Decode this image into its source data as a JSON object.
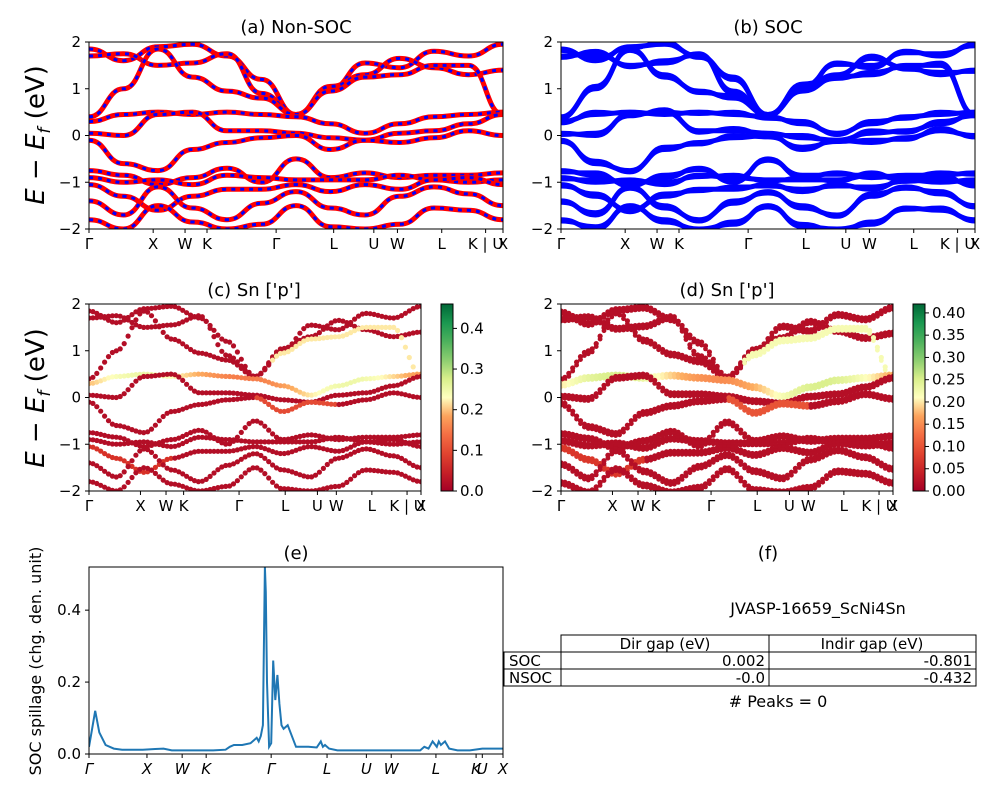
{
  "chart_data": [
    {
      "type": "line",
      "panel": "a",
      "title": "(a) Non-SOC",
      "ylabel_parts": [
        "E",
        " − ",
        "E",
        "f",
        " (eV)"
      ],
      "ylim": [
        -2,
        2
      ],
      "yticks": [
        "2",
        "1",
        "0",
        "−1",
        "−2"
      ],
      "xticks": [
        "Γ",
        "X",
        "W",
        "K",
        "Γ",
        "L",
        "U",
        "W",
        "L",
        "K | U",
        "X"
      ],
      "series": [
        {
          "values": [
            1.85,
            1.6,
            1.9,
            1.95,
            1.7,
            1.2,
            0.45,
            1.0,
            1.55,
            1.45,
            1.8,
            1.7,
            1.95
          ]
        },
        {
          "values": [
            1.7,
            1.75,
            1.5,
            1.55,
            1.75,
            0.9,
            0.45,
            1.05,
            1.3,
            1.65,
            1.45,
            1.3,
            1.4
          ]
        },
        {
          "values": [
            0.4,
            1.0,
            1.85,
            1.25,
            0.95,
            0.8,
            0.45,
            0.95,
            1.25,
            1.3,
            1.5,
            1.5,
            0.45
          ]
        },
        {
          "values": [
            0.3,
            0.45,
            0.5,
            0.45,
            0.5,
            0.45,
            0.4,
            0.25,
            0.05,
            0.25,
            0.4,
            0.45,
            0.5
          ]
        },
        {
          "values": [
            0.05,
            0.0,
            0.45,
            0.5,
            0.1,
            0.1,
            0.05,
            -0.05,
            -0.1,
            0.05,
            0.1,
            0.25,
            0.45
          ]
        },
        {
          "values": [
            -0.1,
            -0.6,
            -0.75,
            -0.3,
            -0.15,
            -0.05,
            0.0,
            -0.3,
            -0.1,
            -0.15,
            -0.05,
            0.1,
            0.0
          ]
        },
        {
          "values": [
            -0.75,
            -0.85,
            -1.05,
            -0.9,
            -0.7,
            -1.0,
            -0.5,
            -0.9,
            -0.8,
            -0.9,
            -0.85,
            -0.85,
            -0.8
          ]
        },
        {
          "values": [
            -0.9,
            -1.0,
            -0.95,
            -1.05,
            -0.85,
            -0.9,
            -0.95,
            -0.95,
            -0.95,
            -0.85,
            -0.95,
            -1.0,
            -0.95
          ]
        },
        {
          "values": [
            -1.05,
            -1.3,
            -1.6,
            -1.3,
            -1.15,
            -1.15,
            -1.05,
            -1.2,
            -1.05,
            -1.15,
            -0.95,
            -0.9,
            -1.05
          ]
        },
        {
          "values": [
            -1.4,
            -1.7,
            -1.1,
            -1.55,
            -1.8,
            -1.45,
            -1.2,
            -1.55,
            -1.7,
            -1.3,
            -1.1,
            -1.25,
            -1.5
          ]
        },
        {
          "values": [
            -1.8,
            -2.0,
            -1.5,
            -1.85,
            -2.0,
            -1.9,
            -1.5,
            -1.95,
            -2.0,
            -1.9,
            -1.55,
            -1.6,
            -1.8
          ]
        }
      ]
    },
    {
      "type": "line",
      "panel": "b",
      "title": "(b) SOC",
      "ylim": [
        -2,
        2
      ],
      "yticks": [
        "2",
        "1",
        "0",
        "−1",
        "−2"
      ],
      "xticks": [
        "Γ",
        "X",
        "W",
        "K",
        "Γ",
        "L",
        "U",
        "W",
        "L",
        "K | U",
        "X"
      ]
    },
    {
      "type": "scatter",
      "panel": "c",
      "title": "(c)  Sn ['p']",
      "ylabel_parts": [
        "E",
        " − ",
        "E",
        "f",
        " (eV)"
      ],
      "ylim": [
        -2,
        2
      ],
      "yticks": [
        "2",
        "1",
        "0",
        "−1",
        "−2"
      ],
      "xticks": [
        "Γ",
        "X",
        "W",
        "K",
        "Γ",
        "L",
        "U",
        "W",
        "L",
        "K | U",
        "X"
      ],
      "colorbar": {
        "min": 0.0,
        "max": 0.46,
        "ticks": [
          "0.4",
          "0.3",
          "0.2",
          "0.1",
          "0.0"
        ],
        "tick_values": [
          0.4,
          0.3,
          0.2,
          0.1,
          0.0
        ]
      }
    },
    {
      "type": "scatter",
      "panel": "d",
      "title": "(d) Sn ['p']",
      "ylim": [
        -2,
        2
      ],
      "yticks": [
        "2",
        "1",
        "0",
        "−1",
        "−2"
      ],
      "xticks": [
        "Γ",
        "X",
        "W",
        "K",
        "Γ",
        "L",
        "U",
        "W",
        "L",
        "K | U",
        "X"
      ],
      "colorbar": {
        "min": 0.0,
        "max": 0.42,
        "ticks": [
          "0.40",
          "0.35",
          "0.30",
          "0.25",
          "0.20",
          "0.15",
          "0.10",
          "0.05",
          "0.00"
        ],
        "tick_values": [
          0.4,
          0.35,
          0.3,
          0.25,
          0.2,
          0.15,
          0.1,
          0.05,
          0.0
        ]
      }
    },
    {
      "type": "line",
      "panel": "e",
      "title": "(e)",
      "ylabel": "SOC spillage (chg. den. unit)",
      "ylim": [
        0,
        0.52
      ],
      "yticks": [
        "0.4",
        "0.2",
        "0.0"
      ],
      "ytick_values": [
        0.4,
        0.2,
        0.0
      ],
      "xticks": [
        "Γ",
        "X",
        "W",
        "K",
        "Γ",
        "L",
        "U",
        "W",
        "L",
        "K",
        "U",
        "X"
      ],
      "x": [
        0,
        0.006,
        0.015,
        0.025,
        0.04,
        0.06,
        0.08,
        0.1,
        0.13,
        0.16,
        0.18,
        0.2,
        0.25,
        0.3,
        0.33,
        0.34,
        0.35,
        0.37,
        0.39,
        0.405,
        0.41,
        0.415,
        0.42,
        0.425,
        0.427,
        0.43,
        0.435,
        0.44,
        0.445,
        0.45,
        0.455,
        0.46,
        0.465,
        0.47,
        0.48,
        0.5,
        0.53,
        0.55,
        0.56,
        0.565,
        0.57,
        0.58,
        0.6,
        0.65,
        0.7,
        0.75,
        0.8,
        0.81,
        0.82,
        0.83,
        0.84,
        0.845,
        0.85,
        0.86,
        0.87,
        0.89,
        0.92,
        0.95,
        1.0
      ],
      "values": [
        0.02,
        0.06,
        0.12,
        0.06,
        0.025,
        0.015,
        0.012,
        0.012,
        0.012,
        0.014,
        0.015,
        0.01,
        0.01,
        0.01,
        0.012,
        0.02,
        0.025,
        0.025,
        0.03,
        0.045,
        0.035,
        0.05,
        0.08,
        0.52,
        0.45,
        0.2,
        0.02,
        0.03,
        0.26,
        0.15,
        0.22,
        0.14,
        0.08,
        0.07,
        0.08,
        0.02,
        0.02,
        0.018,
        0.035,
        0.02,
        0.025,
        0.015,
        0.01,
        0.01,
        0.01,
        0.01,
        0.01,
        0.02,
        0.015,
        0.035,
        0.02,
        0.035,
        0.025,
        0.035,
        0.015,
        0.01,
        0.01,
        0.015,
        0.015
      ]
    }
  ],
  "info_panel": {
    "title": "(f)",
    "material": "JVASP-16659_ScNi4Sn",
    "columns": [
      "Dir gap (eV)",
      "Indir gap (eV)"
    ],
    "rows": [
      {
        "label": "SOC",
        "dir": "0.002",
        "indir": "-0.801"
      },
      {
        "label": "NSOC",
        "dir": "-0.0",
        "indir": "-0.432"
      }
    ],
    "peaks": "# Peaks = 0"
  },
  "colors": {
    "nonsoc_red": "#ff0000",
    "nonsoc_blue": "#0000ff",
    "soc_blue": "#0000ff",
    "spillage": "#1f77b4"
  }
}
